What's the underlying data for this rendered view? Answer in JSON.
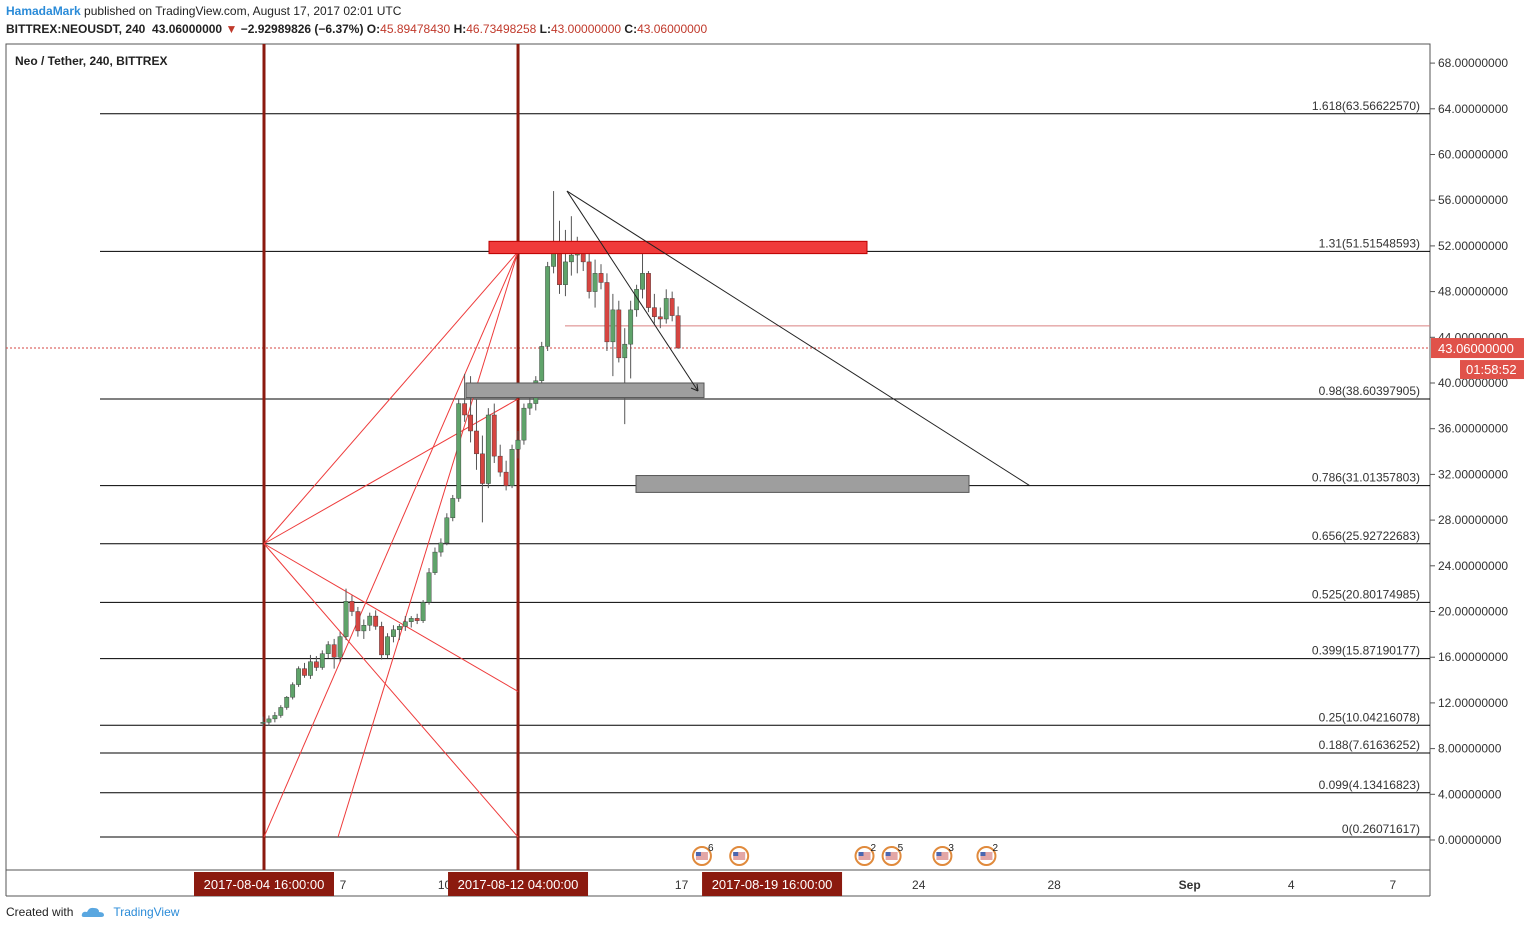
{
  "header": {
    "author": "HamadaMark",
    "published": "published on TradingView.com, August 17, 2017 02:01 UTC",
    "symbol_line": "BITTREX:NEOUSDT, 240",
    "last": "43.06000000",
    "change_arrow": "▼",
    "change": "−2.92989826 (−6.37%)",
    "o_label": "O:",
    "o": "45.89478430",
    "h_label": "H:",
    "h": "46.73498258",
    "l_label": "L:",
    "l": "43.00000000",
    "c_label": "C:",
    "c": "43.06000000"
  },
  "chart_title": "Neo / Tether, 240, BITTREX",
  "footer": {
    "created": "Created with",
    "brand": "TradingView"
  },
  "price_tag": "43.06000000",
  "timer_tag": "01:58:52",
  "colors": {
    "up": "#5fa36a",
    "down": "#d64541",
    "fib_line": "#000000",
    "vline": "#8b1a0f",
    "fan": "#ee3b3b",
    "resist": "#f03a3a",
    "support": "#9e9e9e",
    "price_tag": "#e0524a",
    "date_tag": "#8b1a0f"
  },
  "chart_data": {
    "type": "candlestick",
    "ylim": [
      -1.5,
      70
    ],
    "y_ticks": [
      "68.00000000",
      "64.00000000",
      "60.00000000",
      "56.00000000",
      "52.00000000",
      "48.00000000",
      "44.00000000",
      "40.00000000",
      "36.00000000",
      "32.00000000",
      "28.00000000",
      "24.00000000",
      "20.00000000",
      "16.00000000",
      "12.00000000",
      "8.00000000",
      "4.00000000",
      "0.00000000"
    ],
    "y_tick_values": [
      68,
      64,
      60,
      56,
      52,
      48,
      44,
      40,
      36,
      32,
      28,
      24,
      20,
      16,
      12,
      8,
      4,
      0
    ],
    "x_ticks": [
      {
        "label": "7",
        "day": 7
      },
      {
        "label": "10",
        "day": 10
      },
      {
        "label": "17",
        "day": 17
      },
      {
        "label": "24",
        "day": 24
      },
      {
        "label": "28",
        "day": 28
      },
      {
        "label": "Sep",
        "day": 32
      },
      {
        "label": "4",
        "day": 35
      },
      {
        "label": "7",
        "day": 38
      }
    ],
    "x_date_tags": [
      {
        "label": "2017-08-04 16:00:00",
        "day": 4.67
      },
      {
        "label": "2017-08-12 04:00:00",
        "day": 12.17
      },
      {
        "label": "2017-08-19 16:00:00",
        "day": 19.67
      }
    ],
    "fib_levels": [
      {
        "ratio": "1.618",
        "price": 63.5662257,
        "label": "1.618(63.56622570)"
      },
      {
        "ratio": "1.31",
        "price": 51.51548593,
        "label": "1.31(51.51548593)"
      },
      {
        "ratio": "0.98",
        "price": 38.60397905,
        "label": "0.98(38.60397905)"
      },
      {
        "ratio": "0.786",
        "price": 31.01357803,
        "label": "0.786(31.01357803)"
      },
      {
        "ratio": "0.656",
        "price": 25.92722683,
        "label": "0.656(25.92722683)"
      },
      {
        "ratio": "0.525",
        "price": 20.80174985,
        "label": "0.525(20.80174985)"
      },
      {
        "ratio": "0.399",
        "price": 15.87190177,
        "label": "0.399(15.87190177)"
      },
      {
        "ratio": "0.25",
        "price": 10.04216078,
        "label": "0.25(10.04216078)"
      },
      {
        "ratio": "0.188",
        "price": 7.61636252,
        "label": "0.188(7.61636252)"
      },
      {
        "ratio": "0.099",
        "price": 4.13416823,
        "label": "0.099(4.13416823)"
      },
      {
        "ratio": "0",
        "price": 0.26071617,
        "label": "0(0.26071617)"
      }
    ],
    "last_price": 43.06,
    "prev_close_line": 45.0,
    "candles": [
      {
        "o": 10.2,
        "h": 10.8,
        "l": 9.9,
        "c": 10.3
      },
      {
        "o": 10.3,
        "h": 10.9,
        "l": 10.0,
        "c": 10.6
      },
      {
        "o": 10.6,
        "h": 11.2,
        "l": 10.3,
        "c": 10.9
      },
      {
        "o": 10.9,
        "h": 11.8,
        "l": 10.7,
        "c": 11.6
      },
      {
        "o": 11.6,
        "h": 12.6,
        "l": 11.4,
        "c": 12.5
      },
      {
        "o": 12.5,
        "h": 13.8,
        "l": 12.3,
        "c": 13.6
      },
      {
        "o": 13.6,
        "h": 15.2,
        "l": 13.4,
        "c": 15.0
      },
      {
        "o": 15.0,
        "h": 15.5,
        "l": 14.2,
        "c": 14.4
      },
      {
        "o": 14.4,
        "h": 16.2,
        "l": 14.1,
        "c": 15.6
      },
      {
        "o": 15.6,
        "h": 16.1,
        "l": 14.8,
        "c": 15.1
      },
      {
        "o": 15.1,
        "h": 16.6,
        "l": 14.9,
        "c": 16.3
      },
      {
        "o": 16.3,
        "h": 17.4,
        "l": 15.9,
        "c": 17.1
      },
      {
        "o": 17.1,
        "h": 17.6,
        "l": 15.0,
        "c": 16.0
      },
      {
        "o": 16.0,
        "h": 18.2,
        "l": 15.6,
        "c": 17.8
      },
      {
        "o": 17.8,
        "h": 22.0,
        "l": 17.5,
        "c": 20.9
      },
      {
        "o": 20.9,
        "h": 21.4,
        "l": 19.6,
        "c": 20.0
      },
      {
        "o": 20.0,
        "h": 20.4,
        "l": 17.8,
        "c": 18.3
      },
      {
        "o": 18.3,
        "h": 19.3,
        "l": 17.6,
        "c": 18.8
      },
      {
        "o": 18.8,
        "h": 19.9,
        "l": 18.3,
        "c": 19.6
      },
      {
        "o": 19.6,
        "h": 20.1,
        "l": 18.4,
        "c": 18.7
      },
      {
        "o": 18.7,
        "h": 19.1,
        "l": 15.8,
        "c": 16.2
      },
      {
        "o": 16.2,
        "h": 18.1,
        "l": 15.9,
        "c": 17.8
      },
      {
        "o": 17.8,
        "h": 18.8,
        "l": 17.3,
        "c": 18.4
      },
      {
        "o": 18.4,
        "h": 18.9,
        "l": 17.5,
        "c": 18.7
      },
      {
        "o": 18.7,
        "h": 19.6,
        "l": 18.3,
        "c": 19.1
      },
      {
        "o": 19.1,
        "h": 19.6,
        "l": 18.6,
        "c": 19.4
      },
      {
        "o": 19.4,
        "h": 19.8,
        "l": 18.9,
        "c": 19.2
      },
      {
        "o": 19.2,
        "h": 21.0,
        "l": 19.0,
        "c": 20.8
      },
      {
        "o": 20.8,
        "h": 23.8,
        "l": 20.6,
        "c": 23.4
      },
      {
        "o": 23.4,
        "h": 25.6,
        "l": 23.2,
        "c": 25.2
      },
      {
        "o": 25.2,
        "h": 26.4,
        "l": 24.8,
        "c": 26.0
      },
      {
        "o": 26.0,
        "h": 28.6,
        "l": 25.8,
        "c": 28.2
      },
      {
        "o": 28.2,
        "h": 30.2,
        "l": 27.9,
        "c": 29.9
      },
      {
        "o": 29.9,
        "h": 38.6,
        "l": 29.6,
        "c": 38.2
      },
      {
        "o": 38.2,
        "h": 40.8,
        "l": 36.6,
        "c": 37.2
      },
      {
        "o": 37.2,
        "h": 40.6,
        "l": 34.8,
        "c": 35.8
      },
      {
        "o": 35.8,
        "h": 38.6,
        "l": 32.4,
        "c": 33.8
      },
      {
        "o": 33.8,
        "h": 35.4,
        "l": 27.8,
        "c": 31.2
      },
      {
        "o": 31.2,
        "h": 37.8,
        "l": 30.8,
        "c": 37.2
      },
      {
        "o": 37.2,
        "h": 38.2,
        "l": 33.0,
        "c": 33.6
      },
      {
        "o": 33.6,
        "h": 34.6,
        "l": 31.8,
        "c": 32.2
      },
      {
        "o": 32.2,
        "h": 33.2,
        "l": 30.6,
        "c": 31.0
      },
      {
        "o": 31.0,
        "h": 34.6,
        "l": 30.8,
        "c": 34.2
      },
      {
        "o": 34.2,
        "h": 35.8,
        "l": 33.4,
        "c": 35.0
      },
      {
        "o": 35.0,
        "h": 38.2,
        "l": 34.6,
        "c": 37.8
      },
      {
        "o": 37.8,
        "h": 38.8,
        "l": 37.2,
        "c": 38.2
      },
      {
        "o": 38.2,
        "h": 40.6,
        "l": 37.6,
        "c": 40.2
      },
      {
        "o": 40.2,
        "h": 43.6,
        "l": 39.8,
        "c": 43.2
      },
      {
        "o": 43.2,
        "h": 50.6,
        "l": 42.8,
        "c": 50.2
      },
      {
        "o": 50.2,
        "h": 56.8,
        "l": 49.6,
        "c": 51.8
      },
      {
        "o": 51.8,
        "h": 54.2,
        "l": 47.8,
        "c": 48.6
      },
      {
        "o": 48.6,
        "h": 53.4,
        "l": 47.6,
        "c": 50.6
      },
      {
        "o": 50.6,
        "h": 54.6,
        "l": 49.4,
        "c": 51.2
      },
      {
        "o": 51.2,
        "h": 52.8,
        "l": 49.6,
        "c": 51.6
      },
      {
        "o": 51.6,
        "h": 52.4,
        "l": 49.8,
        "c": 50.6
      },
      {
        "o": 50.6,
        "h": 51.8,
        "l": 47.4,
        "c": 48.0
      },
      {
        "o": 48.0,
        "h": 50.8,
        "l": 46.6,
        "c": 49.6
      },
      {
        "o": 49.6,
        "h": 50.4,
        "l": 48.2,
        "c": 48.8
      },
      {
        "o": 48.8,
        "h": 49.6,
        "l": 42.8,
        "c": 43.6
      },
      {
        "o": 43.6,
        "h": 47.8,
        "l": 40.6,
        "c": 46.4
      },
      {
        "o": 46.4,
        "h": 47.2,
        "l": 41.8,
        "c": 42.2
      },
      {
        "o": 42.2,
        "h": 44.8,
        "l": 36.4,
        "c": 43.4
      },
      {
        "o": 43.4,
        "h": 47.2,
        "l": 40.4,
        "c": 46.4
      },
      {
        "o": 46.4,
        "h": 48.6,
        "l": 45.8,
        "c": 48.2
      },
      {
        "o": 48.2,
        "h": 51.4,
        "l": 47.4,
        "c": 49.6
      },
      {
        "o": 49.6,
        "h": 49.8,
        "l": 46.2,
        "c": 46.6
      },
      {
        "o": 46.6,
        "h": 47.8,
        "l": 45.2,
        "c": 45.8
      },
      {
        "o": 45.8,
        "h": 46.6,
        "l": 44.8,
        "c": 45.6
      },
      {
        "o": 45.6,
        "h": 48.2,
        "l": 45.2,
        "c": 47.4
      },
      {
        "o": 47.4,
        "h": 48.0,
        "l": 45.4,
        "c": 45.9
      },
      {
        "o": 45.9,
        "h": 46.7,
        "l": 43.0,
        "c": 43.06
      }
    ],
    "event_badges": [
      {
        "day": 17.6,
        "count": "6"
      },
      {
        "day": 18.7,
        "count": ""
      },
      {
        "day": 22.4,
        "count": "2"
      },
      {
        "day": 23.2,
        "count": "5"
      },
      {
        "day": 24.7,
        "count": "3"
      },
      {
        "day": 26.0,
        "count": "2"
      }
    ]
  }
}
